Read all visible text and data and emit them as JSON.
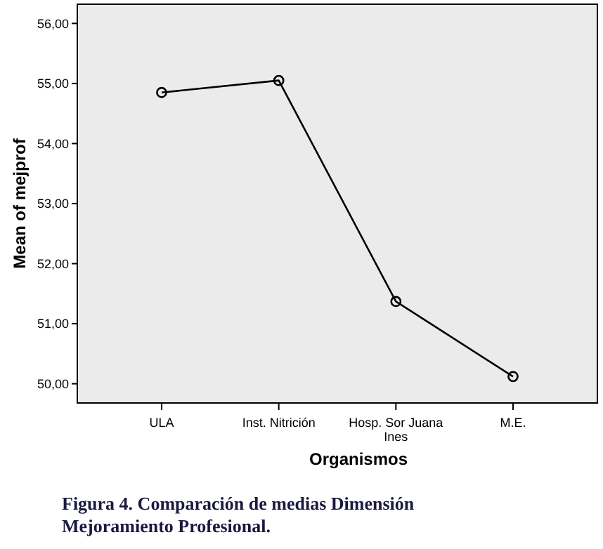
{
  "chart_data": {
    "type": "line",
    "title": "Figura 4. Comparación de medias Dimensión Mejoramiento Profesional.",
    "xlabel": "Organismos",
    "ylabel": "Mean of mejprof",
    "categories": [
      "ULA",
      "Inst. Nitrición",
      "Hosp. Sor Juana Ines",
      "M.E."
    ],
    "series": [
      {
        "color": "#000000",
        "values": [
          54.85,
          55.05,
          51.37,
          50.12
        ]
      }
    ],
    "ylim": [
      49.68,
      56.32
    ],
    "yticks": [
      {
        "value": 50,
        "label": "50,00"
      },
      {
        "value": 51,
        "label": "51,00"
      },
      {
        "value": 52,
        "label": "52,00"
      },
      {
        "value": 53,
        "label": "53,00"
      },
      {
        "value": 54,
        "label": "54,00"
      },
      {
        "value": 55,
        "label": "55,00"
      },
      {
        "value": 56,
        "label": "56,00"
      }
    ],
    "grid": false,
    "marker": "circle",
    "line_style": "solid"
  }
}
